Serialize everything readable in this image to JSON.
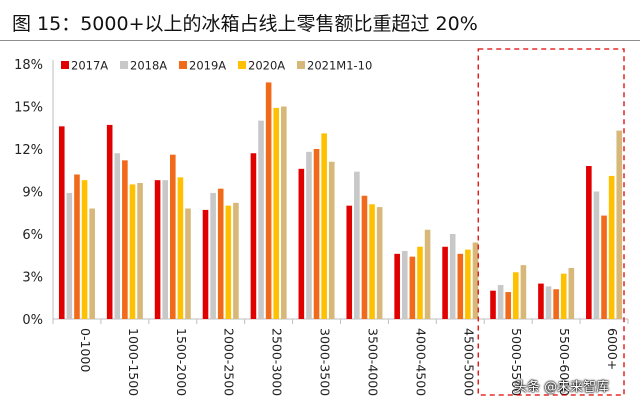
{
  "title": "图 15：5000+以上的冰箱占线上零售额比重超过 20%",
  "watermark": "头条 @未来智库",
  "chart_data": {
    "type": "bar",
    "title": "图 15：5000+以上的冰箱占线上零售额比重超过 20%",
    "xlabel": "",
    "ylabel": "",
    "ylim": [
      0,
      18
    ],
    "yticks": [
      "0%",
      "3%",
      "6%",
      "9%",
      "12%",
      "15%",
      "18%"
    ],
    "grid": false,
    "legend_position": "top",
    "categories": [
      "0-1000",
      "1000-1500",
      "1500-2000",
      "2000-2500",
      "2500-3000",
      "3000-3500",
      "3500-4000",
      "4000-4500",
      "4500-5000",
      "5000-5500",
      "5500-6000",
      "6000+"
    ],
    "series": [
      {
        "name": "2017A",
        "color": "#e00000",
        "values": [
          13.6,
          13.7,
          9.8,
          7.7,
          11.7,
          10.6,
          8.0,
          4.6,
          5.1,
          2.0,
          2.5,
          10.8
        ]
      },
      {
        "name": "2018A",
        "color": "#c8c8c8",
        "values": [
          8.9,
          11.7,
          9.8,
          8.9,
          14.0,
          11.8,
          10.4,
          4.8,
          6.0,
          2.4,
          2.3,
          9.0
        ]
      },
      {
        "name": "2019A",
        "color": "#f06a1a",
        "values": [
          10.2,
          11.2,
          11.6,
          9.2,
          16.7,
          12.0,
          8.7,
          4.4,
          4.6,
          1.9,
          2.1,
          7.3
        ]
      },
      {
        "name": "2020A",
        "color": "#ffc000",
        "values": [
          9.8,
          9.5,
          10.0,
          8.0,
          14.9,
          13.1,
          8.1,
          5.1,
          4.9,
          3.3,
          3.2,
          10.1
        ]
      },
      {
        "name": "2021M1-10",
        "color": "#d8b878",
        "values": [
          7.8,
          9.6,
          7.8,
          8.2,
          15.0,
          11.1,
          7.9,
          6.3,
          5.4,
          3.8,
          3.6,
          13.3
        ]
      }
    ],
    "highlight": {
      "categories": [
        "5000-5500",
        "5500-6000",
        "6000+"
      ],
      "color": "#e00000",
      "style": "dashed"
    }
  }
}
